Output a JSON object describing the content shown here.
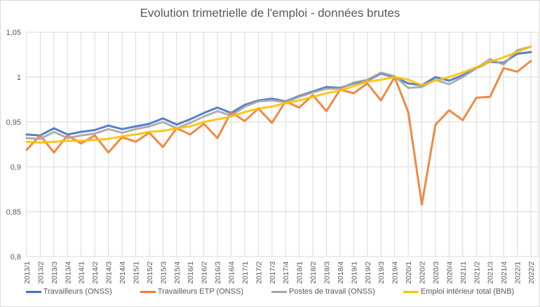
{
  "chart_data": {
    "type": "line",
    "title": "Evolution trimetrielle de l'emploi - données brutes",
    "xlabel": "",
    "ylabel": "",
    "ylim": [
      0.8,
      1.05
    ],
    "yticks": [
      0.8,
      0.85,
      0.9,
      0.95,
      1.0,
      1.05
    ],
    "ytick_labels": [
      "0,8",
      "0,85",
      "0,9",
      "0,95",
      "1",
      "1,05"
    ],
    "grid": true,
    "legend_position": "bottom",
    "categories": [
      "2013/1",
      "2013/2",
      "2013/3",
      "2013/4",
      "2014/1",
      "2014/2",
      "2014/3",
      "2014/4",
      "2015/1",
      "2015/2",
      "2015/3",
      "2015/4",
      "2016/1",
      "2016/2",
      "2016/3",
      "2016/4",
      "2017/1",
      "2017/2",
      "2017/3",
      "2017/4",
      "2018/1",
      "2018/2",
      "2018/3",
      "2018/4",
      "2019/1",
      "2019/2",
      "2019/3",
      "2019/4",
      "2020/1",
      "2020/2",
      "2020/3",
      "2020/4",
      "2021/1",
      "2021/2",
      "2021/3",
      "2021/4",
      "2022/1",
      "2022/2"
    ],
    "series": [
      {
        "name": "Travailleurs (ONSS)",
        "color": "#4472C4",
        "values": [
          0.936,
          0.935,
          0.943,
          0.936,
          0.939,
          0.941,
          0.946,
          0.942,
          0.945,
          0.948,
          0.954,
          0.947,
          0.953,
          0.96,
          0.966,
          0.96,
          0.969,
          0.974,
          0.976,
          0.973,
          0.979,
          0.984,
          0.989,
          0.988,
          0.993,
          0.996,
          1.004,
          1.0,
          0.993,
          0.991,
          1.0,
          0.996,
          1.002,
          1.01,
          1.017,
          1.016,
          1.026,
          1.028
        ]
      },
      {
        "name": "Travailleurs ETP (ONSS)",
        "color": "#ED7D31",
        "values": [
          0.919,
          0.935,
          0.916,
          0.935,
          0.926,
          0.935,
          0.916,
          0.933,
          0.928,
          0.938,
          0.922,
          0.943,
          0.936,
          0.948,
          0.932,
          0.961,
          0.951,
          0.965,
          0.949,
          0.973,
          0.966,
          0.98,
          0.962,
          0.986,
          0.982,
          0.993,
          0.974,
          1.0,
          0.961,
          0.858,
          0.947,
          0.963,
          0.952,
          0.977,
          0.978,
          1.01,
          1.006,
          1.018
        ]
      },
      {
        "name": "Postes de travail (ONSS)",
        "color": "#A5A5A5",
        "values": [
          0.932,
          0.931,
          0.939,
          0.932,
          0.935,
          0.937,
          0.942,
          0.938,
          0.942,
          0.945,
          0.95,
          0.943,
          0.949,
          0.956,
          0.962,
          0.957,
          0.967,
          0.973,
          0.974,
          0.972,
          0.978,
          0.983,
          0.987,
          0.987,
          0.994,
          0.997,
          1.005,
          1.001,
          0.988,
          0.989,
          0.997,
          0.992,
          1.0,
          1.01,
          1.02,
          1.014,
          1.03,
          1.034
        ]
      },
      {
        "name": "Emploi intérieur total (BNB)",
        "color": "#FFC000",
        "values": [
          0.928,
          0.927,
          0.928,
          0.929,
          0.929,
          0.93,
          0.931,
          0.934,
          0.936,
          0.939,
          0.94,
          0.943,
          0.945,
          0.95,
          0.953,
          0.956,
          0.961,
          0.965,
          0.967,
          0.971,
          0.974,
          0.978,
          0.982,
          0.985,
          0.99,
          0.995,
          0.997,
          1.0,
          0.997,
          0.991,
          0.996,
          1.0,
          1.005,
          1.011,
          1.017,
          1.022,
          1.028,
          1.034
        ]
      }
    ]
  }
}
